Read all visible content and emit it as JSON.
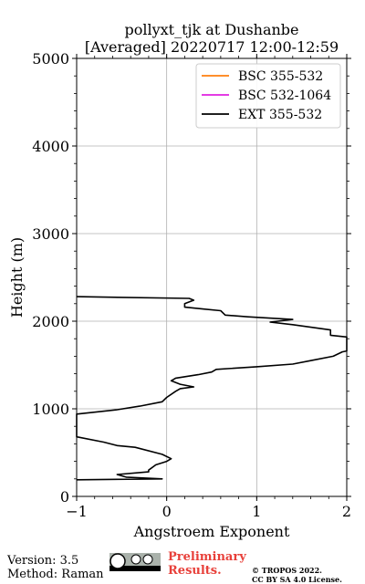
{
  "chart_data": {
    "type": "line",
    "title": "pollyxt_tjk at Dushanbe",
    "subtitle": "[Averaged] 20220717 12:00-12:59",
    "xlabel": "Angstroem Exponent",
    "ylabel": "Height (m)",
    "xlim": [
      -1,
      2
    ],
    "ylim": [
      0,
      5000
    ],
    "x_ticks": [
      "−1",
      "0",
      "1",
      "2"
    ],
    "y_ticks": [
      "0",
      "1000",
      "2000",
      "3000",
      "4000",
      "5000"
    ],
    "grid": true,
    "legend_position": "top-right",
    "series": [
      {
        "name": "BSC 355-532",
        "color": "#ff7f0e",
        "points": []
      },
      {
        "name": "BSC 532-1064",
        "color": "#e020e0",
        "points": []
      },
      {
        "name": "EXT 355-532",
        "color": "#000000",
        "points": [
          [
            -1.0,
            190
          ],
          [
            -0.05,
            200
          ],
          [
            -0.45,
            220
          ],
          [
            -0.55,
            250
          ],
          [
            -0.2,
            280
          ],
          [
            -0.2,
            300
          ],
          [
            -0.12,
            360
          ],
          [
            0.0,
            400
          ],
          [
            0.05,
            430
          ],
          [
            -0.05,
            480
          ],
          [
            -0.35,
            560
          ],
          [
            -0.55,
            580
          ],
          [
            -0.7,
            620
          ],
          [
            -1.0,
            680
          ],
          [
            -1.0,
            940
          ],
          [
            -0.55,
            990
          ],
          [
            -0.3,
            1030
          ],
          [
            -0.05,
            1080
          ],
          [
            0.0,
            1130
          ],
          [
            0.1,
            1200
          ],
          [
            0.15,
            1230
          ],
          [
            0.3,
            1250
          ],
          [
            0.15,
            1280
          ],
          [
            0.05,
            1320
          ],
          [
            0.1,
            1350
          ],
          [
            0.35,
            1390
          ],
          [
            0.5,
            1420
          ],
          [
            0.55,
            1450
          ],
          [
            1.0,
            1480
          ],
          [
            1.4,
            1510
          ],
          [
            1.6,
            1550
          ],
          [
            1.85,
            1600
          ],
          [
            1.95,
            1650
          ],
          [
            2.0,
            1660
          ],
          [
            2.0,
            1820
          ],
          [
            1.82,
            1840
          ],
          [
            1.82,
            1900
          ],
          [
            1.4,
            1960
          ],
          [
            1.15,
            1990
          ],
          [
            1.4,
            2020
          ],
          [
            0.9,
            2050
          ],
          [
            0.65,
            2070
          ],
          [
            0.6,
            2120
          ],
          [
            0.4,
            2140
          ],
          [
            0.2,
            2160
          ],
          [
            0.2,
            2200
          ],
          [
            0.3,
            2240
          ],
          [
            0.25,
            2260
          ],
          [
            -1.0,
            2280
          ]
        ]
      }
    ]
  },
  "footer": {
    "version": "Version: 3.5",
    "method": "Method: Raman",
    "preliminary_line1": "Preliminary",
    "preliminary_line2": "Results.",
    "copyright_line1": "© TROPOS 2022.",
    "copyright_line2": "CC BY SA 4.0 License."
  }
}
